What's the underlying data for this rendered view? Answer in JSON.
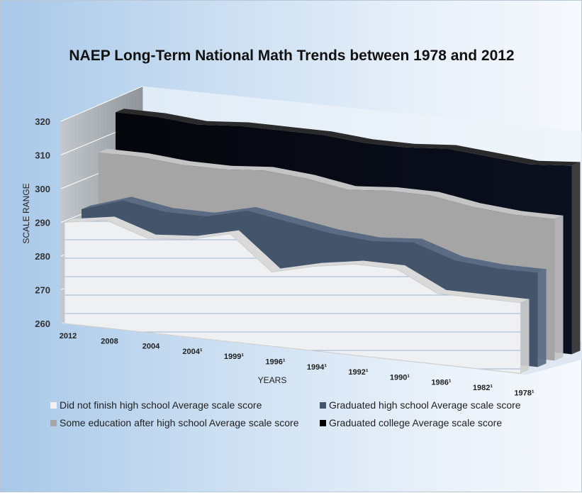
{
  "chart_data": {
    "type": "area",
    "subtype": "3d-area",
    "title": "NAEP Long-Term National Math Trends between 1978 and 2012",
    "xlabel": "YEARS",
    "ylabel": "SCALE RANGE",
    "ylim": [
      260,
      320
    ],
    "yticks": [
      "260",
      "270",
      "280",
      "290",
      "300",
      "310",
      "320"
    ],
    "categories": [
      "2012",
      "2008",
      "2004",
      "2004¹",
      "1999¹",
      "1996¹",
      "1994¹",
      "1992¹",
      "1990¹",
      "1986¹",
      "1982¹",
      "1978¹"
    ],
    "legend_position": "bottom",
    "series": [
      {
        "name": "Did not finish high school Average scale score",
        "color": "#f2f2f2",
        "values": [
          290,
          292,
          288,
          289,
          292,
          282,
          285,
          287,
          287,
          281,
          281,
          281
        ]
      },
      {
        "name": "Graduated high school Average scale score",
        "color": "#44546a",
        "values": [
          292,
          296,
          294,
          294,
          297,
          295,
          293,
          292,
          293,
          289,
          288,
          288
        ]
      },
      {
        "name": "Some education after high school Average scale score",
        "color": "#a5a5a5",
        "values": [
          307,
          307,
          306,
          306,
          307,
          306,
          304,
          305,
          305,
          303,
          302,
          302
        ]
      },
      {
        "name": "Graduated college Average scale score",
        "color": "#000000",
        "values": [
          317,
          317,
          316,
          317,
          317,
          317,
          316,
          316,
          317,
          316,
          315,
          316
        ]
      }
    ]
  }
}
